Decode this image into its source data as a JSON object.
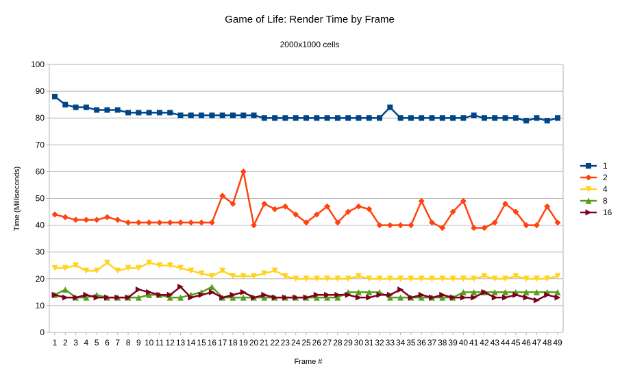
{
  "chart_data": {
    "type": "line",
    "title": "Game of Life: Render Time by Frame",
    "subtitle": "2000x1000 cells",
    "xlabel": "Frame #",
    "ylabel": "Time (Milliseconds)",
    "ylim": [
      0,
      100
    ],
    "y_ticks": [
      0,
      10,
      20,
      30,
      40,
      50,
      60,
      70,
      80,
      90,
      100
    ],
    "grid": true,
    "legend_position": "right",
    "categories": [
      1,
      2,
      3,
      4,
      5,
      6,
      7,
      8,
      9,
      10,
      11,
      12,
      13,
      14,
      15,
      16,
      17,
      18,
      19,
      20,
      21,
      22,
      23,
      24,
      25,
      26,
      27,
      28,
      29,
      30,
      31,
      32,
      33,
      34,
      35,
      36,
      37,
      38,
      39,
      40,
      41,
      42,
      43,
      44,
      45,
      46,
      47,
      48,
      49
    ],
    "series": [
      {
        "name": "1",
        "color": "#004586",
        "marker": "square",
        "values": [
          88,
          85,
          84,
          84,
          83,
          83,
          83,
          82,
          82,
          82,
          82,
          82,
          81,
          81,
          81,
          81,
          81,
          81,
          81,
          81,
          80,
          80,
          80,
          80,
          80,
          80,
          80,
          80,
          80,
          80,
          80,
          80,
          84,
          80,
          80,
          80,
          80,
          80,
          80,
          80,
          81,
          80,
          80,
          80,
          80,
          79,
          80,
          79,
          80
        ]
      },
      {
        "name": "2",
        "color": "#ff420e",
        "marker": "diamond",
        "values": [
          44,
          43,
          42,
          42,
          42,
          43,
          42,
          41,
          41,
          41,
          41,
          41,
          41,
          41,
          41,
          41,
          51,
          48,
          60,
          40,
          48,
          46,
          47,
          44,
          41,
          44,
          47,
          41,
          45,
          47,
          46,
          40,
          40,
          40,
          40,
          49,
          41,
          39,
          45,
          49,
          39,
          39,
          41,
          48,
          45,
          40,
          40,
          47,
          41
        ]
      },
      {
        "name": "4",
        "color": "#ffd320",
        "marker": "triangle-down",
        "values": [
          24,
          24,
          25,
          23,
          23,
          26,
          23,
          24,
          24,
          26,
          25,
          25,
          24,
          23,
          22,
          21,
          23,
          21,
          21,
          21,
          22,
          23,
          21,
          20,
          20,
          20,
          20,
          20,
          20,
          21,
          20,
          20,
          20,
          20,
          20,
          20,
          20,
          20,
          20,
          20,
          20,
          21,
          20,
          20,
          21,
          20,
          20,
          20,
          21
        ]
      },
      {
        "name": "8",
        "color": "#579d1c",
        "marker": "triangle-up",
        "values": [
          14,
          16,
          13,
          13,
          14,
          13,
          13,
          13,
          13,
          14,
          14,
          13,
          13,
          14,
          15,
          17,
          13,
          13,
          13,
          13,
          13,
          13,
          13,
          13,
          13,
          13,
          13,
          13,
          15,
          15,
          15,
          15,
          13,
          13,
          13,
          13,
          13,
          13,
          13,
          15,
          15,
          15,
          15,
          15,
          15,
          15,
          15,
          15,
          15
        ]
      },
      {
        "name": "16",
        "color": "#7e0021",
        "marker": "triangle-right",
        "values": [
          14,
          13,
          13,
          14,
          13,
          13,
          13,
          13,
          16,
          15,
          14,
          14,
          17,
          13,
          14,
          15,
          13,
          14,
          15,
          13,
          14,
          13,
          13,
          13,
          13,
          14,
          14,
          14,
          14,
          13,
          13,
          14,
          14,
          16,
          13,
          14,
          13,
          14,
          13,
          13,
          13,
          15,
          13,
          13,
          14,
          13,
          12,
          14,
          13
        ]
      }
    ]
  }
}
